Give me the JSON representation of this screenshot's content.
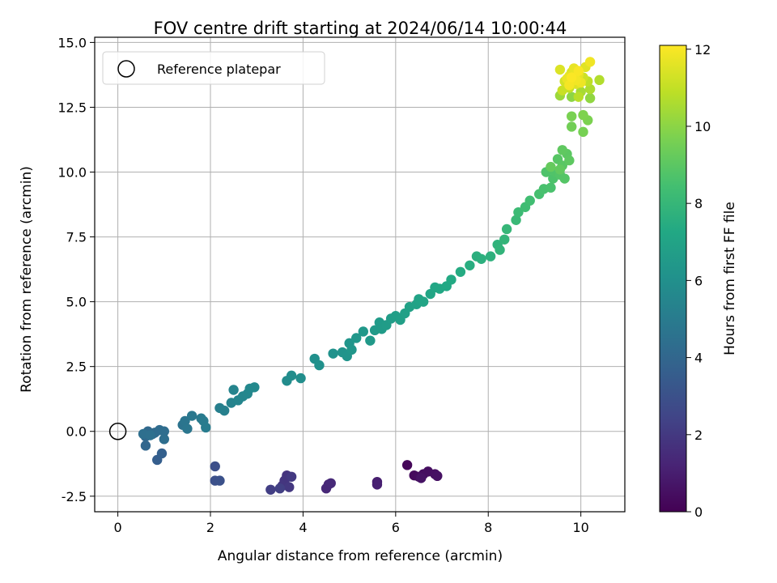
{
  "chart_data": {
    "type": "scatter",
    "title": "FOV centre drift starting at 2024/06/14 10:00:44",
    "xlabel": "Angular distance from reference (arcmin)",
    "ylabel": "Rotation from reference (arcmin)",
    "xlim": [
      -0.5,
      10.95
    ],
    "ylim": [
      -3.1,
      15.2
    ],
    "xticks": [
      0,
      2,
      4,
      6,
      8,
      10
    ],
    "yticks": [
      -2.5,
      0.0,
      2.5,
      5.0,
      7.5,
      10.0,
      12.5,
      15.0
    ],
    "grid": true,
    "legend": {
      "position": "top-left",
      "entries": [
        "Reference platepar"
      ]
    },
    "reference_point": {
      "x": 0,
      "y": 0
    },
    "colorbar": {
      "label": "Hours from first FF file",
      "colormap": "viridis",
      "range": [
        0,
        12.1
      ],
      "ticks": [
        0,
        2,
        4,
        6,
        8,
        10,
        12
      ]
    },
    "points": [
      {
        "x": 6.25,
        "y": -1.3,
        "c": 0.2
      },
      {
        "x": 6.4,
        "y": -1.7,
        "c": 0.3
      },
      {
        "x": 6.5,
        "y": -1.75,
        "c": 0.35
      },
      {
        "x": 6.6,
        "y": -1.65,
        "c": 0.4
      },
      {
        "x": 6.7,
        "y": -1.55,
        "c": 0.45
      },
      {
        "x": 6.85,
        "y": -1.65,
        "c": 0.5
      },
      {
        "x": 6.9,
        "y": -1.72,
        "c": 0.55
      },
      {
        "x": 6.55,
        "y": -1.8,
        "c": 0.6
      },
      {
        "x": 5.6,
        "y": -1.95,
        "c": 1.0
      },
      {
        "x": 5.6,
        "y": -2.05,
        "c": 1.05
      },
      {
        "x": 4.55,
        "y": -2.05,
        "c": 1.3
      },
      {
        "x": 4.5,
        "y": -2.2,
        "c": 1.35
      },
      {
        "x": 4.6,
        "y": -2.0,
        "c": 1.4
      },
      {
        "x": 3.65,
        "y": -1.7,
        "c": 1.8
      },
      {
        "x": 3.6,
        "y": -1.9,
        "c": 1.85
      },
      {
        "x": 3.55,
        "y": -2.1,
        "c": 1.9
      },
      {
        "x": 3.7,
        "y": -2.15,
        "c": 1.95
      },
      {
        "x": 3.75,
        "y": -1.75,
        "c": 2.0
      },
      {
        "x": 3.3,
        "y": -2.25,
        "c": 2.2
      },
      {
        "x": 3.5,
        "y": -2.2,
        "c": 2.25
      },
      {
        "x": 2.1,
        "y": -1.35,
        "c": 2.9
      },
      {
        "x": 2.1,
        "y": -1.9,
        "c": 2.95
      },
      {
        "x": 2.2,
        "y": -1.9,
        "c": 3.0
      },
      {
        "x": 0.85,
        "y": -1.1,
        "c": 3.6
      },
      {
        "x": 0.95,
        "y": -0.85,
        "c": 3.7
      },
      {
        "x": 0.6,
        "y": -0.55,
        "c": 4.0
      },
      {
        "x": 0.6,
        "y": -0.2,
        "c": 4.05
      },
      {
        "x": 0.65,
        "y": 0.0,
        "c": 4.1
      },
      {
        "x": 0.75,
        "y": -0.1,
        "c": 4.15
      },
      {
        "x": 0.8,
        "y": -0.05,
        "c": 4.2
      },
      {
        "x": 0.9,
        "y": 0.05,
        "c": 4.25
      },
      {
        "x": 1.0,
        "y": 0.0,
        "c": 4.3
      },
      {
        "x": 1.0,
        "y": -0.3,
        "c": 4.35
      },
      {
        "x": 0.55,
        "y": -0.1,
        "c": 4.4
      },
      {
        "x": 0.7,
        "y": -0.15,
        "c": 4.45
      },
      {
        "x": 1.4,
        "y": 0.25,
        "c": 4.6
      },
      {
        "x": 1.45,
        "y": 0.4,
        "c": 4.7
      },
      {
        "x": 1.5,
        "y": 0.1,
        "c": 4.75
      },
      {
        "x": 1.6,
        "y": 0.6,
        "c": 4.85
      },
      {
        "x": 1.8,
        "y": 0.5,
        "c": 4.95
      },
      {
        "x": 1.85,
        "y": 0.4,
        "c": 5.0
      },
      {
        "x": 1.9,
        "y": 0.15,
        "c": 5.05
      },
      {
        "x": 2.2,
        "y": 0.9,
        "c": 5.2
      },
      {
        "x": 2.3,
        "y": 0.8,
        "c": 5.25
      },
      {
        "x": 2.45,
        "y": 1.1,
        "c": 5.35
      },
      {
        "x": 2.5,
        "y": 1.6,
        "c": 5.4
      },
      {
        "x": 2.6,
        "y": 1.2,
        "c": 5.45
      },
      {
        "x": 2.7,
        "y": 1.35,
        "c": 5.5
      },
      {
        "x": 2.8,
        "y": 1.45,
        "c": 5.55
      },
      {
        "x": 2.85,
        "y": 1.65,
        "c": 5.6
      },
      {
        "x": 2.95,
        "y": 1.7,
        "c": 5.65
      },
      {
        "x": 3.65,
        "y": 1.95,
        "c": 5.8
      },
      {
        "x": 3.75,
        "y": 2.15,
        "c": 5.85
      },
      {
        "x": 3.95,
        "y": 2.05,
        "c": 5.9
      },
      {
        "x": 4.25,
        "y": 2.8,
        "c": 6.0
      },
      {
        "x": 4.35,
        "y": 2.55,
        "c": 6.05
      },
      {
        "x": 4.65,
        "y": 3.0,
        "c": 6.1
      },
      {
        "x": 4.85,
        "y": 3.05,
        "c": 6.15
      },
      {
        "x": 4.95,
        "y": 2.9,
        "c": 6.2
      },
      {
        "x": 5.0,
        "y": 3.4,
        "c": 6.25
      },
      {
        "x": 5.05,
        "y": 3.15,
        "c": 6.3
      },
      {
        "x": 5.15,
        "y": 3.6,
        "c": 6.35
      },
      {
        "x": 5.3,
        "y": 3.85,
        "c": 6.4
      },
      {
        "x": 5.45,
        "y": 3.5,
        "c": 6.45
      },
      {
        "x": 5.55,
        "y": 3.9,
        "c": 6.5
      },
      {
        "x": 5.65,
        "y": 4.2,
        "c": 6.55
      },
      {
        "x": 5.7,
        "y": 3.95,
        "c": 6.6
      },
      {
        "x": 5.8,
        "y": 4.1,
        "c": 6.65
      },
      {
        "x": 5.9,
        "y": 4.35,
        "c": 6.7
      },
      {
        "x": 6.0,
        "y": 4.45,
        "c": 6.75
      },
      {
        "x": 6.1,
        "y": 4.3,
        "c": 6.8
      },
      {
        "x": 6.2,
        "y": 4.55,
        "c": 6.85
      },
      {
        "x": 6.3,
        "y": 4.8,
        "c": 6.9
      },
      {
        "x": 6.45,
        "y": 4.9,
        "c": 6.95
      },
      {
        "x": 6.5,
        "y": 5.1,
        "c": 7.0
      },
      {
        "x": 6.6,
        "y": 5.0,
        "c": 7.05
      },
      {
        "x": 6.75,
        "y": 5.3,
        "c": 7.1
      },
      {
        "x": 6.85,
        "y": 5.55,
        "c": 7.15
      },
      {
        "x": 6.95,
        "y": 5.5,
        "c": 7.2
      },
      {
        "x": 7.1,
        "y": 5.6,
        "c": 7.25
      },
      {
        "x": 7.2,
        "y": 5.85,
        "c": 7.3
      },
      {
        "x": 7.4,
        "y": 6.15,
        "c": 7.4
      },
      {
        "x": 7.6,
        "y": 6.4,
        "c": 7.5
      },
      {
        "x": 7.75,
        "y": 6.75,
        "c": 7.6
      },
      {
        "x": 7.85,
        "y": 6.65,
        "c": 7.65
      },
      {
        "x": 8.05,
        "y": 6.75,
        "c": 7.7
      },
      {
        "x": 8.2,
        "y": 7.2,
        "c": 7.8
      },
      {
        "x": 8.25,
        "y": 7.0,
        "c": 7.85
      },
      {
        "x": 8.35,
        "y": 7.4,
        "c": 7.9
      },
      {
        "x": 8.4,
        "y": 7.8,
        "c": 8.0
      },
      {
        "x": 8.6,
        "y": 8.15,
        "c": 8.1
      },
      {
        "x": 8.65,
        "y": 8.45,
        "c": 8.2
      },
      {
        "x": 8.8,
        "y": 8.65,
        "c": 8.3
      },
      {
        "x": 8.9,
        "y": 8.9,
        "c": 8.35
      },
      {
        "x": 9.1,
        "y": 9.15,
        "c": 8.5
      },
      {
        "x": 9.2,
        "y": 9.35,
        "c": 8.55
      },
      {
        "x": 9.35,
        "y": 9.4,
        "c": 8.6
      },
      {
        "x": 9.4,
        "y": 9.75,
        "c": 8.65
      },
      {
        "x": 9.25,
        "y": 10.0,
        "c": 8.7
      },
      {
        "x": 9.45,
        "y": 10.0,
        "c": 8.75
      },
      {
        "x": 9.55,
        "y": 9.9,
        "c": 8.8
      },
      {
        "x": 9.65,
        "y": 9.75,
        "c": 8.85
      },
      {
        "x": 9.5,
        "y": 10.5,
        "c": 8.9
      },
      {
        "x": 9.6,
        "y": 10.25,
        "c": 8.95
      },
      {
        "x": 9.7,
        "y": 10.7,
        "c": 9.0
      },
      {
        "x": 9.75,
        "y": 10.45,
        "c": 9.05
      },
      {
        "x": 9.6,
        "y": 10.85,
        "c": 9.1
      },
      {
        "x": 9.55,
        "y": 10.1,
        "c": 9.15
      },
      {
        "x": 9.35,
        "y": 10.2,
        "c": 9.2
      },
      {
        "x": 9.8,
        "y": 11.75,
        "c": 9.5
      },
      {
        "x": 10.05,
        "y": 11.55,
        "c": 9.6
      },
      {
        "x": 9.8,
        "y": 12.15,
        "c": 9.65
      },
      {
        "x": 10.15,
        "y": 12.0,
        "c": 9.7
      },
      {
        "x": 10.05,
        "y": 12.2,
        "c": 9.75
      },
      {
        "x": 9.8,
        "y": 12.9,
        "c": 10.0
      },
      {
        "x": 10.2,
        "y": 12.85,
        "c": 10.1
      },
      {
        "x": 9.55,
        "y": 12.95,
        "c": 10.3
      },
      {
        "x": 10.0,
        "y": 13.1,
        "c": 10.5
      },
      {
        "x": 10.2,
        "y": 13.2,
        "c": 10.6
      },
      {
        "x": 10.4,
        "y": 13.55,
        "c": 10.7
      },
      {
        "x": 9.95,
        "y": 12.9,
        "c": 10.8
      },
      {
        "x": 10.15,
        "y": 13.5,
        "c": 10.9
      },
      {
        "x": 9.75,
        "y": 13.25,
        "c": 11.0
      },
      {
        "x": 9.6,
        "y": 13.15,
        "c": 11.1
      },
      {
        "x": 10.05,
        "y": 13.65,
        "c": 11.2
      },
      {
        "x": 9.65,
        "y": 13.5,
        "c": 11.3
      },
      {
        "x": 9.8,
        "y": 13.85,
        "c": 11.4
      },
      {
        "x": 9.55,
        "y": 13.95,
        "c": 11.45
      },
      {
        "x": 9.9,
        "y": 13.4,
        "c": 11.5
      },
      {
        "x": 10.1,
        "y": 14.05,
        "c": 11.55
      },
      {
        "x": 9.75,
        "y": 13.7,
        "c": 11.6
      },
      {
        "x": 9.95,
        "y": 13.75,
        "c": 11.65
      },
      {
        "x": 9.85,
        "y": 14.0,
        "c": 11.7
      },
      {
        "x": 9.7,
        "y": 13.6,
        "c": 11.75
      },
      {
        "x": 10.0,
        "y": 13.45,
        "c": 11.8
      },
      {
        "x": 10.2,
        "y": 14.25,
        "c": 11.85
      },
      {
        "x": 9.9,
        "y": 13.55,
        "c": 11.9
      },
      {
        "x": 9.75,
        "y": 13.35,
        "c": 11.95
      },
      {
        "x": 9.95,
        "y": 13.9,
        "c": 12.0
      },
      {
        "x": 9.8,
        "y": 13.65,
        "c": 12.05
      }
    ]
  }
}
